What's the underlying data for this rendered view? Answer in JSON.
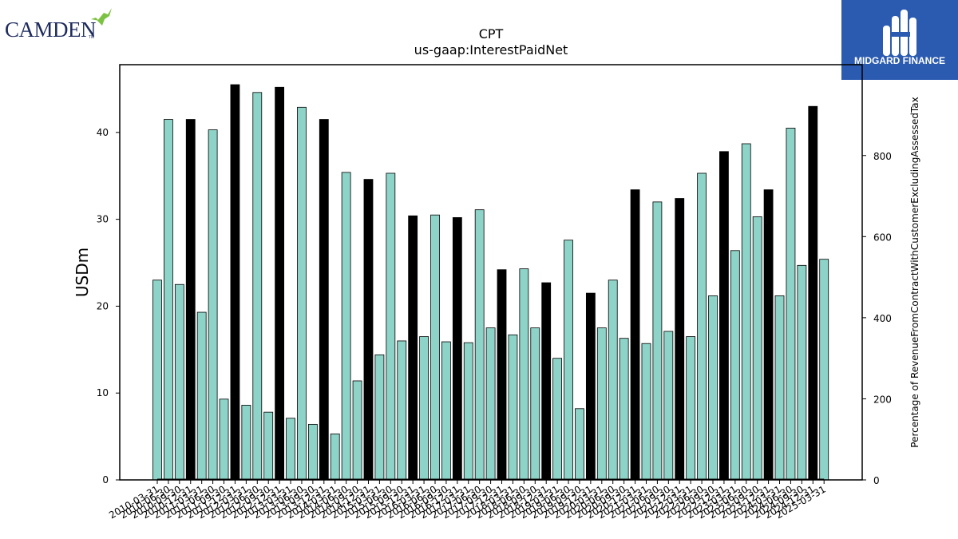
{
  "logos": {
    "left_text": "CAMDEN",
    "left_mark": "TM",
    "right_text": "MIDGARD FINANCE"
  },
  "chart_data": {
    "type": "bar",
    "title": "CPT",
    "subtitle": "us-gaap:InterestPaidNet",
    "ylabel": "USDm",
    "y2label": "Percentage of RevenueFromContractWithCustomerExcludingAssessedTax",
    "ylim": [
      0,
      47.8
    ],
    "y2lim": [
      0,
      1024
    ],
    "yticks": [
      0,
      10,
      20,
      30,
      40
    ],
    "y2ticks": [
      0,
      200,
      400,
      600,
      800
    ],
    "colors": {
      "bar_default": "#8dd3c7",
      "bar_q4": "#000000",
      "line": "#000000"
    },
    "categories": [
      "2010-03-31",
      "2010-06-30",
      "2010-09-30",
      "2010-12-31",
      "2011-03-31",
      "2011-06-30",
      "2011-09-30",
      "2011-12-31",
      "2012-03-31",
      "2012-06-30",
      "2012-09-30",
      "2012-12-31",
      "2013-03-31",
      "2013-06-30",
      "2013-09-30",
      "2013-12-31",
      "2014-03-31",
      "2014-06-30",
      "2014-09-30",
      "2014-12-31",
      "2015-03-31",
      "2015-06-30",
      "2015-09-30",
      "2015-12-31",
      "2016-03-31",
      "2016-06-30",
      "2016-09-30",
      "2016-12-31",
      "2017-03-31",
      "2017-06-30",
      "2017-09-30",
      "2017-12-31",
      "2018-03-31",
      "2018-06-30",
      "2018-09-30",
      "2018-12-31",
      "2019-03-31",
      "2019-06-30",
      "2019-09-30",
      "2019-12-31",
      "2020-03-31",
      "2020-06-30",
      "2020-09-30",
      "2020-12-31",
      "2021-03-31",
      "2021-06-30",
      "2021-09-30",
      "2021-12-31",
      "2022-03-31",
      "2022-06-30",
      "2022-09-30",
      "2022-12-31",
      "2023-03-31",
      "2023-06-30",
      "2023-09-30",
      "2023-12-31",
      "2024-03-31",
      "2024-06-30",
      "2024-09-30",
      "2024-12-31",
      "2025-03-31"
    ],
    "tick_labels": [
      "2010-03-31",
      "2010-06-30",
      "2010-09-30",
      "2010-12-31",
      "2011-03-31",
      "2011-06-30",
      "2011-09-30",
      "2011-12-31",
      "2012-03-31",
      "2012-06-30",
      "2012-09-30",
      "2012-12-31",
      "2013-03-31",
      "2013-06-30",
      "2013-09-30",
      "2013-12-31",
      "2014-03-31",
      "2014-06-30",
      "2014-09-30",
      "2014-12-31",
      "2015-03-31",
      "2015-06-30",
      "2015-09-30",
      "2015-12-31",
      "2016-03-31",
      "2016-06-30",
      "2016-09-30",
      "2016-12-31",
      "2017-03-31",
      "2017-06-30",
      "2017-09-30",
      "2017-12-31",
      "2018-03-31",
      "2018-06-30",
      "2018-09-30",
      "2018-12-31",
      "2019-03-31",
      "2019-06-30",
      "2019-09-30",
      "2019-12-31",
      "2020-03-31",
      "2020-06-30",
      "2020-09-30",
      "2020-12-31",
      "2021-03-31",
      "2021-06-30",
      "2021-09-30",
      "2021-12-31",
      "2022-03-31",
      "2022-06-30",
      "2022-09-30",
      "2022-12-31",
      "2023-03-31",
      "2023-06-30",
      "2023-09-30",
      "2023-12-31",
      "2024-03-31",
      "2024-06-30",
      "2024-09-30",
      "2024-12-31",
      "2025-03-31"
    ],
    "values": [
      23.0,
      41.5,
      22.5,
      41.5,
      19.3,
      40.3,
      9.3,
      45.5,
      8.6,
      44.6,
      7.8,
      45.2,
      7.1,
      42.9,
      6.4,
      41.5,
      5.3,
      35.4,
      11.4,
      34.6,
      14.4,
      35.3,
      16.0,
      30.4,
      16.5,
      30.5,
      15.9,
      30.2,
      15.8,
      31.1,
      17.5,
      24.2,
      16.7,
      24.3,
      17.5,
      22.7,
      14.0,
      27.6,
      8.2,
      21.5,
      17.5,
      23.0,
      16.3,
      33.4,
      15.7,
      32.0,
      17.1,
      32.4,
      16.5,
      35.3,
      21.2,
      37.8,
      26.4,
      38.7,
      30.3,
      33.4,
      21.2,
      40.5,
      24.7,
      43.0,
      25.4
    ],
    "q4_flags": [
      false,
      false,
      false,
      true,
      false,
      false,
      false,
      true,
      false,
      false,
      false,
      true,
      false,
      false,
      false,
      true,
      false,
      false,
      false,
      true,
      false,
      false,
      false,
      true,
      false,
      false,
      false,
      true,
      false,
      false,
      false,
      true,
      false,
      false,
      false,
      true,
      false,
      false,
      false,
      true,
      false,
      false,
      false,
      true,
      false,
      false,
      false,
      true,
      false,
      false,
      false,
      true,
      false,
      false,
      false,
      true,
      false,
      false,
      false,
      true,
      false
    ],
    "line_series": {
      "values": [
        0,
        0,
        0,
        0,
        0,
        0,
        0,
        0,
        0,
        0,
        0,
        0,
        0,
        0,
        0,
        0,
        0,
        0,
        0,
        0,
        0,
        0,
        0,
        0,
        0,
        0,
        0,
        0,
        0,
        0,
        0,
        0,
        0,
        0,
        0,
        0,
        0,
        0,
        0,
        0,
        0,
        0,
        0,
        0,
        0,
        0,
        0,
        0,
        0,
        0,
        0,
        0,
        0,
        0,
        0,
        0,
        0,
        0,
        0,
        0,
        0
      ]
    }
  }
}
